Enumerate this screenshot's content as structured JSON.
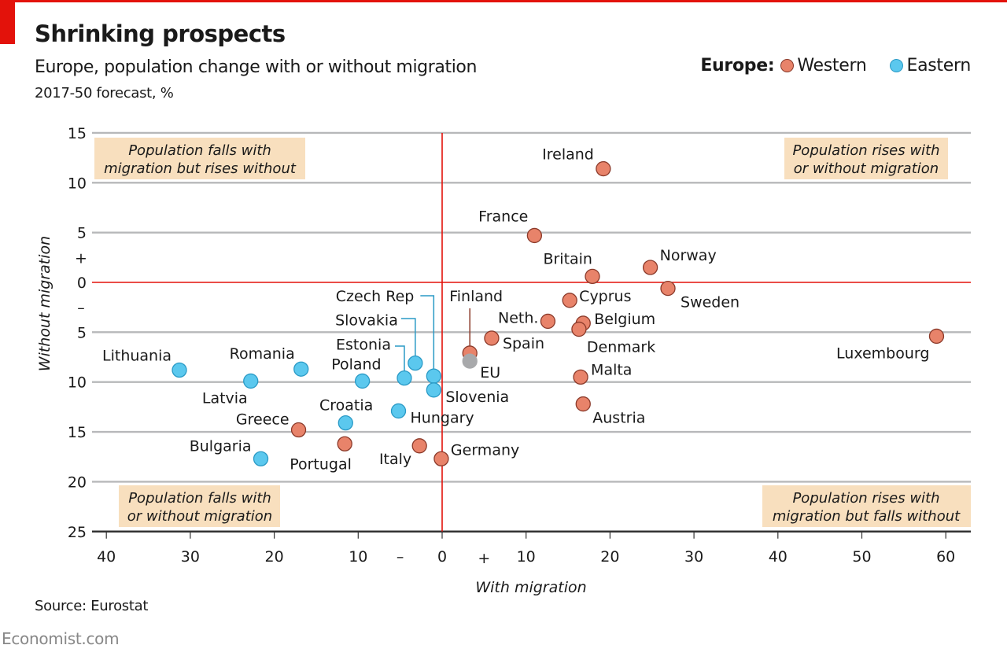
{
  "header": {
    "title": "Shrinking prospects",
    "subtitle": "Europe, population change with or without migration",
    "units": "2017-50 forecast, %"
  },
  "legend": {
    "title": "Europe:",
    "items": [
      {
        "label": "Western",
        "color": "#e8836a"
      },
      {
        "label": "Eastern",
        "color": "#5bc8ee"
      }
    ]
  },
  "footer": {
    "source": "Source: Eurostat",
    "brand": "Economist.com"
  },
  "colors": {
    "accent_red": "#e3120b",
    "western": "#e8836a",
    "western_stroke": "#8b3a2a",
    "eastern": "#5bc8ee",
    "eastern_stroke": "#2a9ac6",
    "eu": "#a8a9ab",
    "grid": "#b7b8ba",
    "quadrant_bg": "#f8dfbe"
  },
  "chart_data": {
    "type": "scatter",
    "title": "Shrinking prospects",
    "subtitle": "Europe, population change with or without migration",
    "xlabel": "With migration",
    "ylabel": "Without migration",
    "xlim": [
      -40,
      60
    ],
    "ylim": [
      -25,
      15
    ],
    "x_ticks": [
      {
        "value": -40,
        "label": "40"
      },
      {
        "value": -30,
        "label": "30"
      },
      {
        "value": -20,
        "label": "20"
      },
      {
        "value": -10,
        "label": "10"
      },
      {
        "value": 0,
        "label": "0"
      },
      {
        "value": 10,
        "label": "10"
      },
      {
        "value": 20,
        "label": "20"
      },
      {
        "value": 30,
        "label": "30"
      },
      {
        "value": 40,
        "label": "40"
      },
      {
        "value": 50,
        "label": "50"
      },
      {
        "value": 60,
        "label": "60"
      }
    ],
    "y_ticks": [
      {
        "value": 15,
        "label": "15"
      },
      {
        "value": 10,
        "label": "10"
      },
      {
        "value": 5,
        "label": "5"
      },
      {
        "value": 0,
        "label": "0"
      },
      {
        "value": -5,
        "label": "5"
      },
      {
        "value": -10,
        "label": "10"
      },
      {
        "value": -15,
        "label": "15"
      },
      {
        "value": -20,
        "label": "20"
      },
      {
        "value": -25,
        "label": "25"
      }
    ],
    "sign_markers": {
      "x_minus": "–",
      "x_plus": "+",
      "y_plus": "+",
      "y_minus": "–"
    },
    "grid": true,
    "legend_position": "top-right",
    "quadrant_labels": [
      {
        "id": "top-left",
        "lines": [
          "Population falls with",
          "migration but rises without"
        ]
      },
      {
        "id": "top-right",
        "lines": [
          "Population rises with",
          "or without migration"
        ]
      },
      {
        "id": "bottom-left",
        "lines": [
          "Population falls with",
          "or without migration"
        ]
      },
      {
        "id": "bottom-right",
        "lines": [
          "Population rises with",
          "migration but falls without"
        ]
      }
    ],
    "series": [
      {
        "name": "Western",
        "points": [
          {
            "label": "Ireland",
            "x": 19.2,
            "y": 11.4
          },
          {
            "label": "France",
            "x": 11.0,
            "y": 4.7
          },
          {
            "label": "Britain",
            "x": 17.9,
            "y": 0.6
          },
          {
            "label": "Norway",
            "x": 24.8,
            "y": 1.5
          },
          {
            "label": "Sweden",
            "x": 26.9,
            "y": -0.6
          },
          {
            "label": "Cyprus",
            "x": 15.2,
            "y": -1.8
          },
          {
            "label": "Neth.",
            "x": 12.6,
            "y": -3.9
          },
          {
            "label": "Belgium",
            "x": 16.8,
            "y": -4.1
          },
          {
            "label": "Denmark",
            "x": 16.3,
            "y": -4.7
          },
          {
            "label": "Spain",
            "x": 5.9,
            "y": -5.6
          },
          {
            "label": "Finland",
            "x": 3.3,
            "y": -7.1
          },
          {
            "label": "Luxembourg",
            "x": 58.9,
            "y": -5.4
          },
          {
            "label": "Malta",
            "x": 16.5,
            "y": -9.5
          },
          {
            "label": "Austria",
            "x": 16.8,
            "y": -12.2
          },
          {
            "label": "Germany",
            "x": -0.1,
            "y": -17.7
          },
          {
            "label": "Italy",
            "x": -2.7,
            "y": -16.4
          },
          {
            "label": "Portugal",
            "x": -11.6,
            "y": -16.2
          },
          {
            "label": "Greece",
            "x": -17.1,
            "y": -14.8
          }
        ]
      },
      {
        "name": "Eastern",
        "points": [
          {
            "label": "Lithuania",
            "x": -31.3,
            "y": -8.8
          },
          {
            "label": "Latvia",
            "x": -22.8,
            "y": -9.9
          },
          {
            "label": "Romania",
            "x": -16.8,
            "y": -8.7
          },
          {
            "label": "Bulgaria",
            "x": -21.6,
            "y": -17.7
          },
          {
            "label": "Poland",
            "x": -9.5,
            "y": -9.9
          },
          {
            "label": "Croatia",
            "x": -11.5,
            "y": -14.1
          },
          {
            "label": "Hungary",
            "x": -5.2,
            "y": -12.9
          },
          {
            "label": "Estonia",
            "x": -4.5,
            "y": -9.6
          },
          {
            "label": "Slovakia",
            "x": -3.2,
            "y": -8.1
          },
          {
            "label": "Czech Rep",
            "x": -1.0,
            "y": -9.4
          },
          {
            "label": "Slovenia",
            "x": -1.0,
            "y": -10.8
          }
        ]
      },
      {
        "name": "EU",
        "points": [
          {
            "label": "EU",
            "x": 3.3,
            "y": -7.9
          }
        ]
      }
    ]
  }
}
